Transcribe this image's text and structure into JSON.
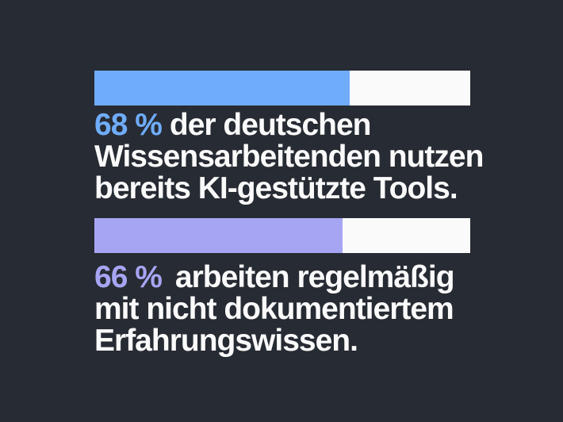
{
  "colors": {
    "background": "#272B33",
    "bar_blue": "#6FACF9",
    "bar_purple": "#A6A5F3",
    "bar_track": "#FAFAFB",
    "text_white": "#FAFAFA"
  },
  "chart_data": {
    "type": "bar",
    "orientation": "horizontal",
    "max": 100,
    "grid": false,
    "values": [
      68,
      66
    ],
    "bar_colors": [
      "#6FACF9",
      "#A6A5F3"
    ],
    "track_color": "#FAFAFB",
    "labels": [
      "68 % der deutschen Wissensarbeitenden nutzen bereits KI-gestützte Tools.",
      "66 % arbeiten regelmäßig mit nicht dokumentiertem Erfahrungswissen."
    ]
  },
  "stats": [
    {
      "value": 68,
      "value_label": "68 %",
      "accent": "#6FACF9",
      "line1_rest": "der deutschen",
      "line2": "Wissensarbeitenden nutzen",
      "line3": "bereits KI-gestützte Tools."
    },
    {
      "value": 66,
      "value_label": "66 %",
      "accent": "#A6A5F3",
      "line1_rest": "arbeiten regelmäßig",
      "line2": "mit nicht dokumentiertem",
      "line3": "Erfahrungswissen."
    }
  ]
}
